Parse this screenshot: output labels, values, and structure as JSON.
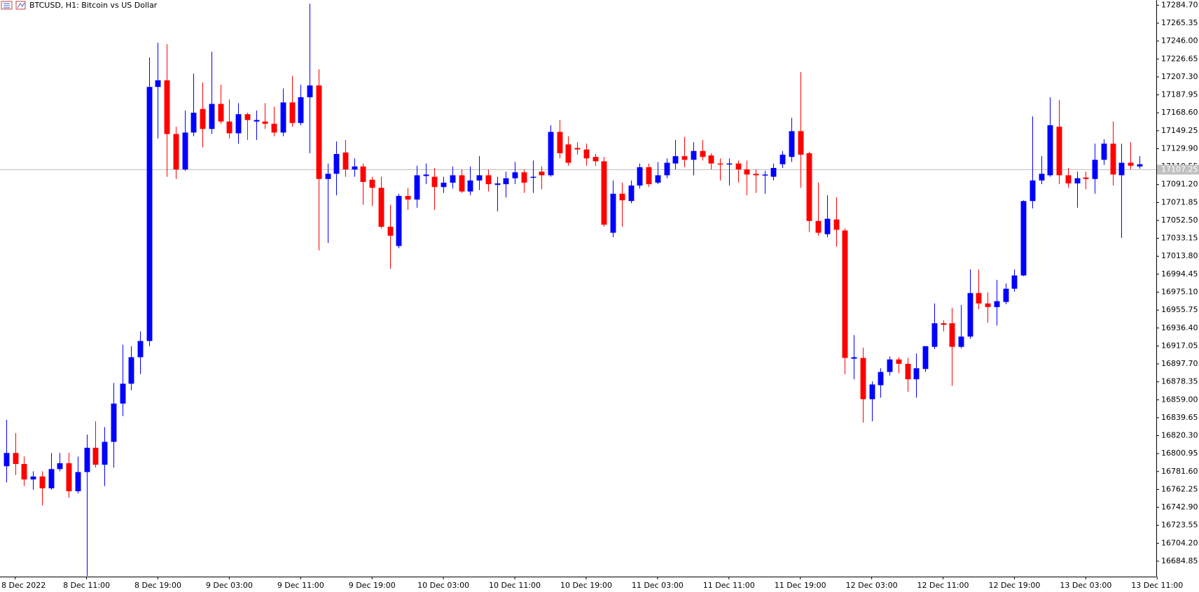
{
  "chart_data": {
    "type": "candlestick",
    "title": "BTCUSD, H1:  Bitcoin vs US Dollar",
    "up_color": "#0000ff",
    "down_color": "#ff0000",
    "open": [
      16787.3,
      16801.6,
      16789.7,
      16773.0,
      16776.2,
      16763.5,
      16784.2,
      16790.5,
      16760.3,
      16781.0,
      16807.2,
      16788.9,
      16813.6,
      16854.9,
      16876.3,
      16904.9,
      16922.4,
      17196.5,
      17203.7,
      17145.7,
      17107.5,
      17147.3,
      17172.7,
      17151.2,
      17178.2,
      17159.2,
      17146.5,
      17167.1,
      17159.2,
      17159.2,
      17156.8,
      17147.3,
      17179.8,
      17157.6,
      17185.4,
      17198.1,
      17097.2,
      17102.8,
      17125.8,
      17107.5,
      17110.7,
      17096.4,
      17087.7,
      17045.6,
      17024.9,
      17078.9,
      17075.0,
      17100.4,
      17099.6,
      17088.5,
      17093.2,
      17101.2,
      17083.7,
      17095.6,
      17101.2,
      17090.8,
      17091.6,
      17098.0,
      17104.4,
      17098.8,
      17105.1,
      17101.2,
      17148.0,
      17134.5,
      17130.6,
      17129.0,
      17121.0,
      17116.3,
      17039.2,
      17081.3,
      17073.4,
      17090.1,
      17109.9,
      17093.2,
      17101.2,
      17113.9,
      17121.8,
      17117.9,
      17127.4,
      17122.6,
      17113.9,
      17113.1,
      17113.9,
      17107.5,
      17102.8,
      17101.2,
      17099.6,
      17113.1,
      17121.0,
      17148.8,
      17125.0,
      17051.9,
      17037.6,
      17053.5,
      17041.6,
      16903.3,
      16904.1,
      16859.6,
      16874.7,
      16889.0,
      16902.5,
      16897.8,
      16881.1,
      16892.2,
      16916.1,
      16941.5,
      16941.5,
      16916.1,
      16927.2,
      16974.1,
      16962.9,
      16959.0,
      16964.5,
      16978.8,
      16993.1,
      17073.4,
      17095.6,
      17101.2,
      17153.6,
      17101.2,
      17092.4,
      17098.8,
      17097.2,
      17117.9,
      17135.3,
      17101.2,
      17114.7,
      17110.7
    ],
    "high": [
      16837.4,
      16823.1,
      16797.7,
      16781.8,
      16781.8,
      16801.6,
      16801.6,
      16801.6,
      16797.7,
      16821.5,
      16835.8,
      16829.5,
      16877.1,
      16918.4,
      16916.8,
      16932.7,
      17228.3,
      17244.2,
      17242.6,
      17153.6,
      17171.1,
      17210.8,
      17201.3,
      17234.6,
      17198.9,
      17183.0,
      17179.0,
      17168.7,
      17171.1,
      17179.0,
      17175.1,
      17194.9,
      17208.4,
      17198.9,
      17286.3,
      17215.6,
      17113.9,
      17137.7,
      17139.3,
      17119.4,
      17113.9,
      17099.6,
      17099.6,
      17069.4,
      17081.3,
      17087.7,
      17111.5,
      17113.9,
      17109.1,
      17099.6,
      17110.7,
      17107.5,
      17110.7,
      17121.8,
      17107.5,
      17099.6,
      17105.1,
      17115.5,
      17107.5,
      17117.1,
      17110.7,
      17155.2,
      17160.8,
      17143.3,
      17136.9,
      17135.3,
      17124.2,
      17121.0,
      17095.6,
      17093.2,
      17095.6,
      17113.9,
      17113.9,
      17115.5,
      17119.4,
      17139.3,
      17142.5,
      17136.9,
      17139.3,
      17125.0,
      17119.4,
      17119.4,
      17117.1,
      17117.1,
      17107.5,
      17105.9,
      17113.9,
      17127.4,
      17163.1,
      17212.4,
      17126.6,
      17093.2,
      17079.7,
      17077.3,
      17044.0,
      16928.8,
      16915.3,
      16878.7,
      16893.0,
      16905.7,
      16904.9,
      16904.1,
      16908.9,
      16916.8,
      16962.9,
      16944.7,
      16958.2,
      16961.3,
      16999.5,
      16999.5,
      16974.8,
      16988.4,
      16984.4,
      16999.5,
      17074.2,
      17164.7,
      17121.8,
      17185.4,
      17182.2,
      17109.1,
      17105.1,
      17105.1,
      17135.3,
      17140.1,
      17159.2,
      17135.3,
      17136.9,
      17121.8
    ],
    "low": [
      16769.9,
      16777.8,
      16765.9,
      16761.9,
      16745.2,
      16761.9,
      16781.8,
      16753.2,
      16757.9,
      16669.0,
      16785.8,
      16765.9,
      16785.8,
      16841.4,
      16869.2,
      16886.7,
      16916.8,
      17140.9,
      17099.6,
      17097.2,
      17105.9,
      17143.3,
      17131.4,
      17145.7,
      17156.8,
      17140.9,
      17135.3,
      17139.3,
      17139.3,
      17151.2,
      17143.3,
      17143.3,
      17153.6,
      17155.2,
      17125.0,
      17020.1,
      17028.1,
      17079.7,
      17099.6,
      17099.6,
      17069.4,
      17067.8,
      17044.0,
      17000.3,
      17022.5,
      17063.8,
      17066.2,
      17091.6,
      17063.8,
      17082.1,
      17086.9,
      17082.1,
      17079.7,
      17085.3,
      17083.7,
      17062.2,
      17077.3,
      17091.6,
      17082.1,
      17082.1,
      17086.1,
      17099.6,
      17119.4,
      17111.5,
      17123.4,
      17111.5,
      17111.5,
      17045.6,
      17034.4,
      17045.6,
      17071.0,
      17086.9,
      17088.5,
      17091.6,
      17098.0,
      17107.5,
      17109.9,
      17101.2,
      17117.1,
      17107.5,
      17095.6,
      17090.1,
      17093.2,
      17079.7,
      17082.1,
      17081.3,
      17095.6,
      17109.1,
      17115.5,
      17087.7,
      17040.0,
      17036.0,
      17034.4,
      17024.1,
      16886.7,
      16881.1,
      16834.2,
      16835.8,
      16861.2,
      16885.1,
      16887.5,
      16867.6,
      16861.2,
      16889.0,
      16913.7,
      16932.7,
      16873.9,
      16914.5,
      16924.8,
      16956.6,
      16942.3,
      16939.1,
      16962.1,
      16975.6,
      16992.3,
      17065.4,
      17091.6,
      17099.6,
      17091.6,
      17087.7,
      17066.2,
      17086.1,
      17081.3,
      17112.3,
      17090.1,
      17033.6,
      17107.5,
      17108.3
    ],
    "close": [
      16801.6,
      16789.7,
      16773.0,
      16776.2,
      16763.5,
      16784.2,
      16790.5,
      16760.3,
      16781.0,
      16807.2,
      16788.9,
      16813.6,
      16854.9,
      16876.3,
      16904.9,
      16922.4,
      17196.5,
      17203.7,
      17145.7,
      17107.5,
      17147.3,
      17168.7,
      17151.2,
      17178.2,
      17159.2,
      17146.5,
      17167.1,
      17160.8,
      17160.8,
      17156.8,
      17147.3,
      17179.8,
      17157.6,
      17185.4,
      17198.1,
      17097.2,
      17102.8,
      17124.2,
      17107.5,
      17110.7,
      17094.0,
      17087.7,
      17045.6,
      17036.0,
      17078.9,
      17075.0,
      17101.2,
      17102.0,
      17088.5,
      17093.2,
      17101.2,
      17083.7,
      17095.6,
      17101.2,
      17091.6,
      17092.4,
      17098.0,
      17104.4,
      17093.2,
      17099.6,
      17101.2,
      17148.0,
      17125.0,
      17114.7,
      17129.0,
      17119.4,
      17116.3,
      17047.9,
      17081.3,
      17074.2,
      17090.1,
      17109.9,
      17091.6,
      17101.2,
      17114.7,
      17121.8,
      17117.9,
      17127.4,
      17121.0,
      17113.9,
      17113.1,
      17113.9,
      17107.5,
      17102.0,
      17101.2,
      17102.0,
      17109.1,
      17123.4,
      17148.8,
      17123.4,
      17051.9,
      17039.2,
      17054.3,
      17042.4,
      16904.1,
      16904.9,
      16859.6,
      16875.5,
      16889.0,
      16902.5,
      16897.8,
      16881.1,
      16893.0,
      16916.8,
      16941.5,
      16939.9,
      16916.1,
      16927.2,
      16974.1,
      16962.9,
      16959.0,
      16965.3,
      16978.8,
      16993.1,
      17073.4,
      17095.6,
      17102.8,
      17155.2,
      17101.2,
      17092.4,
      17098.0,
      17097.2,
      17117.9,
      17135.3,
      17102.0,
      17114.7,
      17111.5,
      17113.1
    ],
    "last_price": 17107.25,
    "last_price_color": "#c0c0c0",
    "xlim": [
      -0.7,
      128.9
    ],
    "xticks": [
      {
        "value": 1,
        "label": "8 Dec 2022"
      },
      {
        "value": 9,
        "label": "8 Dec 11:00"
      },
      {
        "value": 17,
        "label": "8 Dec 19:00"
      },
      {
        "value": 25,
        "label": "9 Dec 03:00"
      },
      {
        "value": 33,
        "label": "9 Dec 11:00"
      },
      {
        "value": 41,
        "label": "9 Dec 19:00"
      },
      {
        "value": 49,
        "label": "10 Dec 03:00"
      },
      {
        "value": 57,
        "label": "10 Dec 11:00"
      },
      {
        "value": 65,
        "label": "10 Dec 19:00"
      },
      {
        "value": 73,
        "label": "11 Dec 03:00"
      },
      {
        "value": 81,
        "label": "11 Dec 11:00"
      },
      {
        "value": 89,
        "label": "11 Dec 19:00"
      },
      {
        "value": 97,
        "label": "12 Dec 03:00"
      },
      {
        "value": 105,
        "label": "12 Dec 11:00"
      },
      {
        "value": 113,
        "label": "12 Dec 19:00"
      },
      {
        "value": 121,
        "label": "13 Dec 03:00"
      },
      {
        "value": 129,
        "label": "13 Dec 11:00"
      }
    ],
    "ylim": [
      16668.2,
      17290.3
    ],
    "yticks": [
      {
        "value": 17284.7,
        "label": "17284.70"
      },
      17265.35,
      {
        "value": 17246,
        "label": "17246.00"
      },
      17226.65,
      {
        "value": 17207.3,
        "label": "17207.30"
      },
      17187.95,
      {
        "value": 17168.6,
        "label": "17168.60"
      },
      17149.25,
      {
        "value": 17129.9,
        "label": "17129.90"
      },
      17110.55,
      {
        "value": 17091.2,
        "label": "17091.20"
      },
      17071.85,
      {
        "value": 17052.5,
        "label": "17052.50"
      },
      17033.15,
      {
        "value": 17013.8,
        "label": "17013.80"
      },
      16994.45,
      {
        "value": 16975.1,
        "label": "16975.10"
      },
      16955.75,
      {
        "value": 16936.4,
        "label": "16936.40"
      },
      16917.05,
      {
        "value": 16897.7,
        "label": "16897.70"
      },
      16878.35,
      {
        "value": 16859,
        "label": "16859.00"
      },
      16839.65,
      {
        "value": 16820.3,
        "label": "16820.30"
      },
      16800.95,
      {
        "value": 16781.6,
        "label": "16781.60"
      },
      16762.25,
      {
        "value": 16742.9,
        "label": "16742.90"
      },
      16723.55,
      {
        "value": 16704.2,
        "label": "16704.20"
      },
      16684.85
    ],
    "grid": false
  }
}
